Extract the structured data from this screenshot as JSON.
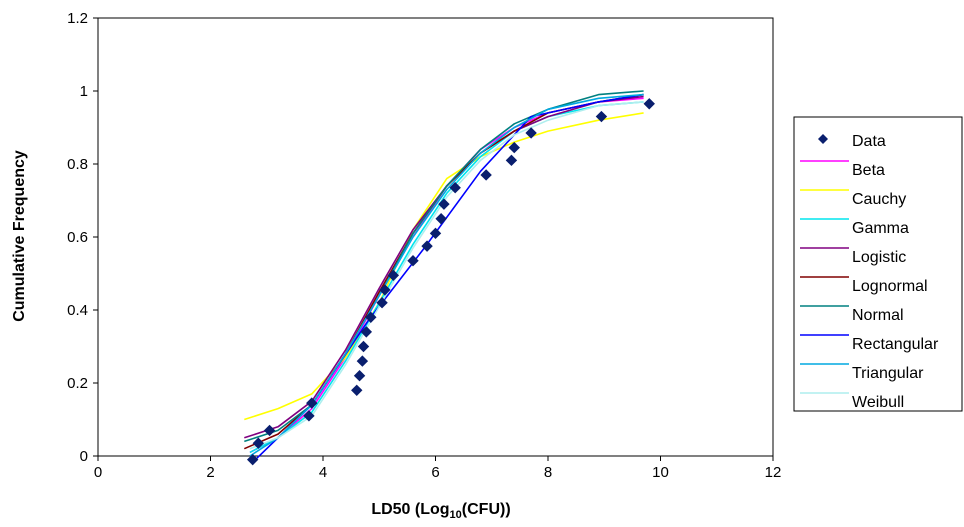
{
  "chart_data": {
    "type": "line",
    "xlabel": "LD50 (Log",
    "xlabel_sub": "10",
    "xlabel_end": "(CFU))",
    "ylabel": "Cumulative Frequency",
    "xlim": [
      0,
      12
    ],
    "ylim": [
      0,
      1.2
    ],
    "x_ticks": [
      "0",
      "2",
      "4",
      "6",
      "8",
      "10",
      "12"
    ],
    "y_ticks": [
      "0",
      "0.2",
      "0.4",
      "0.6",
      "0.8",
      "1",
      "1.2"
    ],
    "grid": false,
    "legend_position": "right",
    "data_points": {
      "name": "Data",
      "color": "#0a1f6e",
      "x": [
        2.75,
        2.85,
        3.05,
        3.75,
        3.8,
        4.6,
        4.65,
        4.7,
        4.72,
        4.77,
        4.85,
        5.05,
        5.1,
        5.25,
        5.6,
        5.85,
        6.0,
        6.1,
        6.15,
        6.35,
        6.9,
        7.35,
        7.4,
        7.7,
        8.95,
        9.8
      ],
      "y": [
        -0.01,
        0.035,
        0.07,
        0.11,
        0.145,
        0.18,
        0.22,
        0.26,
        0.3,
        0.34,
        0.38,
        0.42,
        0.455,
        0.495,
        0.535,
        0.575,
        0.61,
        0.65,
        0.69,
        0.735,
        0.77,
        0.81,
        0.845,
        0.885,
        0.93,
        0.965
      ]
    },
    "series": [
      {
        "name": "Beta",
        "color": "#ff00ff",
        "x": [
          2.7,
          3.2,
          3.8,
          4.4,
          5.0,
          5.6,
          6.2,
          6.8,
          7.4,
          8.0,
          8.9,
          9.7
        ],
        "y": [
          0.01,
          0.05,
          0.13,
          0.27,
          0.44,
          0.6,
          0.74,
          0.84,
          0.9,
          0.94,
          0.97,
          0.98
        ]
      },
      {
        "name": "Cauchy",
        "color": "#ffff00",
        "x": [
          2.6,
          3.2,
          3.8,
          4.4,
          5.0,
          5.6,
          6.2,
          6.8,
          7.4,
          8.0,
          8.9,
          9.7
        ],
        "y": [
          0.1,
          0.13,
          0.17,
          0.27,
          0.42,
          0.62,
          0.76,
          0.82,
          0.86,
          0.89,
          0.92,
          0.94
        ]
      },
      {
        "name": "Gamma",
        "color": "#00e5ee",
        "x": [
          2.7,
          3.2,
          3.8,
          4.4,
          5.0,
          5.6,
          6.2,
          6.8,
          7.4,
          8.0,
          8.9,
          9.7
        ],
        "y": [
          0.01,
          0.05,
          0.12,
          0.26,
          0.42,
          0.58,
          0.72,
          0.82,
          0.89,
          0.93,
          0.96,
          0.97
        ]
      },
      {
        "name": "Logistic",
        "color": "#800080",
        "x": [
          2.6,
          3.2,
          3.8,
          4.4,
          5.0,
          5.6,
          6.2,
          6.8,
          7.4,
          8.0,
          8.9,
          9.7
        ],
        "y": [
          0.05,
          0.08,
          0.15,
          0.29,
          0.46,
          0.62,
          0.74,
          0.83,
          0.89,
          0.93,
          0.97,
          0.985
        ]
      },
      {
        "name": "Lognormal",
        "color": "#800000",
        "x": [
          2.6,
          3.2,
          3.8,
          4.4,
          5.0,
          5.6,
          6.2,
          6.8,
          7.4,
          8.0,
          8.9,
          9.7
        ],
        "y": [
          0.02,
          0.06,
          0.14,
          0.28,
          0.45,
          0.61,
          0.74,
          0.83,
          0.89,
          0.94,
          0.97,
          0.99
        ]
      },
      {
        "name": "Normal",
        "color": "#008080",
        "x": [
          2.6,
          3.2,
          3.8,
          4.4,
          5.0,
          5.6,
          6.2,
          6.8,
          7.4,
          8.0,
          8.9,
          9.7
        ],
        "y": [
          0.04,
          0.07,
          0.14,
          0.28,
          0.44,
          0.61,
          0.74,
          0.84,
          0.91,
          0.95,
          0.99,
          1.0
        ]
      },
      {
        "name": "Rectangular",
        "color": "#0000ff",
        "x": [
          2.8,
          3.8,
          4.8,
          5.8,
          6.8,
          7.7,
          8.9,
          9.7
        ],
        "y": [
          -0.01,
          0.14,
          0.37,
          0.57,
          0.78,
          0.93,
          0.97,
          0.99
        ]
      },
      {
        "name": "Triangular",
        "color": "#00a8e0",
        "x": [
          2.7,
          3.2,
          3.8,
          4.4,
          5.0,
          5.6,
          6.2,
          6.8,
          7.4,
          8.0,
          8.9,
          9.7
        ],
        "y": [
          0.0,
          0.05,
          0.14,
          0.28,
          0.44,
          0.6,
          0.73,
          0.83,
          0.9,
          0.95,
          0.98,
          0.99
        ]
      },
      {
        "name": "Weibull",
        "color": "#aeeeee",
        "x": [
          2.7,
          3.2,
          3.8,
          4.4,
          5.0,
          5.6,
          6.2,
          6.8,
          7.4,
          8.0,
          8.9,
          9.7
        ],
        "y": [
          0.02,
          0.05,
          0.11,
          0.25,
          0.41,
          0.57,
          0.71,
          0.81,
          0.88,
          0.92,
          0.96,
          0.97
        ]
      }
    ]
  }
}
